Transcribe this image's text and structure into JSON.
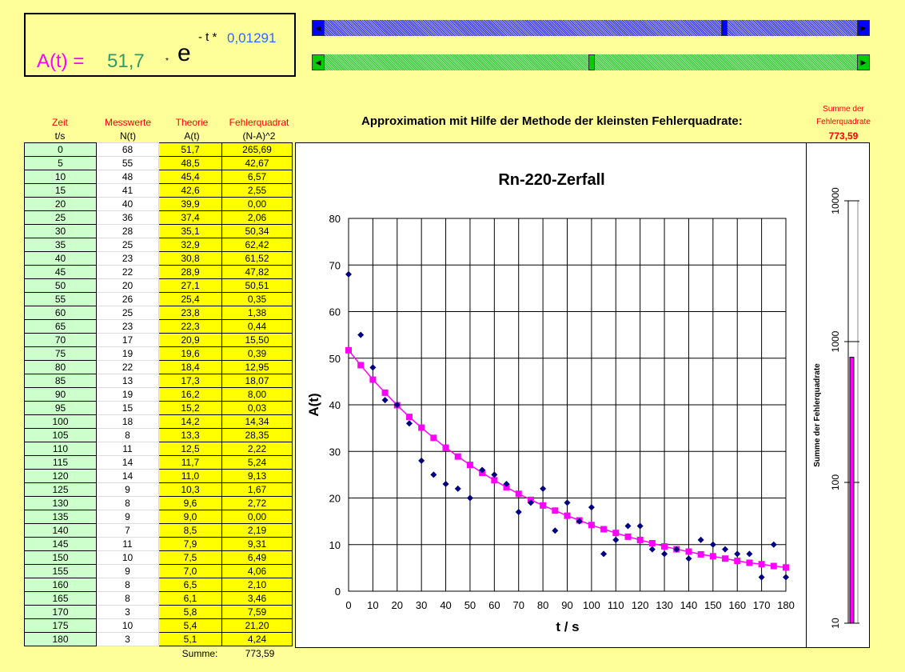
{
  "formula": {
    "lhs": "A(t) =",
    "a0": "51,7",
    "times": "*",
    "e": "e",
    "exp_prefix": "- t *",
    "k": "0,01291"
  },
  "sliders": {
    "a0_position": 0.75,
    "k_position": 0.5
  },
  "headers": {
    "zeit": "Zeit",
    "zeit_unit": "t/s",
    "mess": "Messwerte",
    "mess_unit": "N(t)",
    "theorie": "Theorie",
    "theorie_unit": "A(t)",
    "fehler": "Fehlerquadrat",
    "fehler_unit": "(N-A)^2"
  },
  "approx_title": "Approximation mit Hilfe der Methode der kleinsten Fehlerquadrate:",
  "summe_header": {
    "line1": "Summe der",
    "line2": "Fehlerquadrate",
    "value": "773,59"
  },
  "rows": [
    [
      "0",
      "68",
      "51,7",
      "265,69"
    ],
    [
      "5",
      "55",
      "48,5",
      "42,67"
    ],
    [
      "10",
      "48",
      "45,4",
      "6,57"
    ],
    [
      "15",
      "41",
      "42,6",
      "2,55"
    ],
    [
      "20",
      "40",
      "39,9",
      "0,00"
    ],
    [
      "25",
      "36",
      "37,4",
      "2,06"
    ],
    [
      "30",
      "28",
      "35,1",
      "50,34"
    ],
    [
      "35",
      "25",
      "32,9",
      "62,42"
    ],
    [
      "40",
      "23",
      "30,8",
      "61,52"
    ],
    [
      "45",
      "22",
      "28,9",
      "47,82"
    ],
    [
      "50",
      "20",
      "27,1",
      "50,51"
    ],
    [
      "55",
      "26",
      "25,4",
      "0,35"
    ],
    [
      "60",
      "25",
      "23,8",
      "1,38"
    ],
    [
      "65",
      "23",
      "22,3",
      "0,44"
    ],
    [
      "70",
      "17",
      "20,9",
      "15,50"
    ],
    [
      "75",
      "19",
      "19,6",
      "0,39"
    ],
    [
      "80",
      "22",
      "18,4",
      "12,95"
    ],
    [
      "85",
      "13",
      "17,3",
      "18,07"
    ],
    [
      "90",
      "19",
      "16,2",
      "8,00"
    ],
    [
      "95",
      "15",
      "15,2",
      "0,03"
    ],
    [
      "100",
      "18",
      "14,2",
      "14,34"
    ],
    [
      "105",
      "8",
      "13,3",
      "28,35"
    ],
    [
      "110",
      "11",
      "12,5",
      "2,22"
    ],
    [
      "115",
      "14",
      "11,7",
      "5,24"
    ],
    [
      "120",
      "14",
      "11,0",
      "9,13"
    ],
    [
      "125",
      "9",
      "10,3",
      "1,67"
    ],
    [
      "130",
      "8",
      "9,6",
      "2,72"
    ],
    [
      "135",
      "9",
      "9,0",
      "0,00"
    ],
    [
      "140",
      "7",
      "8,5",
      "2,19"
    ],
    [
      "145",
      "11",
      "7,9",
      "9,31"
    ],
    [
      "150",
      "10",
      "7,5",
      "6,49"
    ],
    [
      "155",
      "9",
      "7,0",
      "4,06"
    ],
    [
      "160",
      "8",
      "6,5",
      "2,10"
    ],
    [
      "165",
      "8",
      "6,1",
      "3,46"
    ],
    [
      "170",
      "3",
      "5,8",
      "7,59"
    ],
    [
      "175",
      "10",
      "5,4",
      "21,20"
    ],
    [
      "180",
      "3",
      "5,1",
      "4,24"
    ]
  ],
  "summe": {
    "label": "Summe:",
    "value": "773,59"
  },
  "chart_data": [
    {
      "type": "scatter",
      "title": "Rn-220-Zerfall",
      "xlabel": "t / s",
      "ylabel": "A(t)",
      "xlim": [
        0,
        180
      ],
      "ylim": [
        0,
        80
      ],
      "xticks": [
        "0",
        "10",
        "20",
        "30",
        "40",
        "50",
        "60",
        "70",
        "80",
        "90",
        "100",
        "110",
        "120",
        "130",
        "140",
        "150",
        "160",
        "170",
        "180"
      ],
      "yticks": [
        "0",
        "10",
        "20",
        "30",
        "40",
        "50",
        "60",
        "70",
        "80"
      ],
      "grid": true,
      "x": [
        0,
        5,
        10,
        15,
        20,
        25,
        30,
        35,
        40,
        45,
        50,
        55,
        60,
        65,
        70,
        75,
        80,
        85,
        90,
        95,
        100,
        105,
        110,
        115,
        120,
        125,
        130,
        135,
        140,
        145,
        150,
        155,
        160,
        165,
        170,
        175,
        180
      ],
      "series": [
        {
          "name": "Messwerte",
          "color": "#000080",
          "marker": "diamond",
          "values": [
            68,
            55,
            48,
            41,
            40,
            36,
            28,
            25,
            23,
            22,
            20,
            26,
            25,
            23,
            17,
            19,
            22,
            13,
            19,
            15,
            18,
            8,
            11,
            14,
            14,
            9,
            8,
            9,
            7,
            11,
            10,
            9,
            8,
            8,
            3,
            10,
            3
          ]
        },
        {
          "name": "Theorie",
          "color": "#ff00ff",
          "marker": "square",
          "values": [
            51.7,
            48.5,
            45.4,
            42.6,
            39.9,
            37.4,
            35.1,
            32.9,
            30.8,
            28.9,
            27.1,
            25.4,
            23.8,
            22.3,
            20.9,
            19.6,
            18.4,
            17.3,
            16.2,
            15.2,
            14.2,
            13.3,
            12.5,
            11.7,
            11.0,
            10.3,
            9.6,
            9.0,
            8.5,
            7.9,
            7.5,
            7.0,
            6.5,
            6.1,
            5.8,
            5.4,
            5.1
          ]
        }
      ]
    },
    {
      "type": "bar",
      "title": "",
      "ylabel": "Summe der Fehlerquadrate",
      "yscale": "log",
      "ylim": [
        10,
        10000
      ],
      "yticks": [
        "10",
        "100",
        "1000",
        "10000"
      ],
      "values": [
        773.59
      ],
      "color": "#ff00ff"
    }
  ]
}
